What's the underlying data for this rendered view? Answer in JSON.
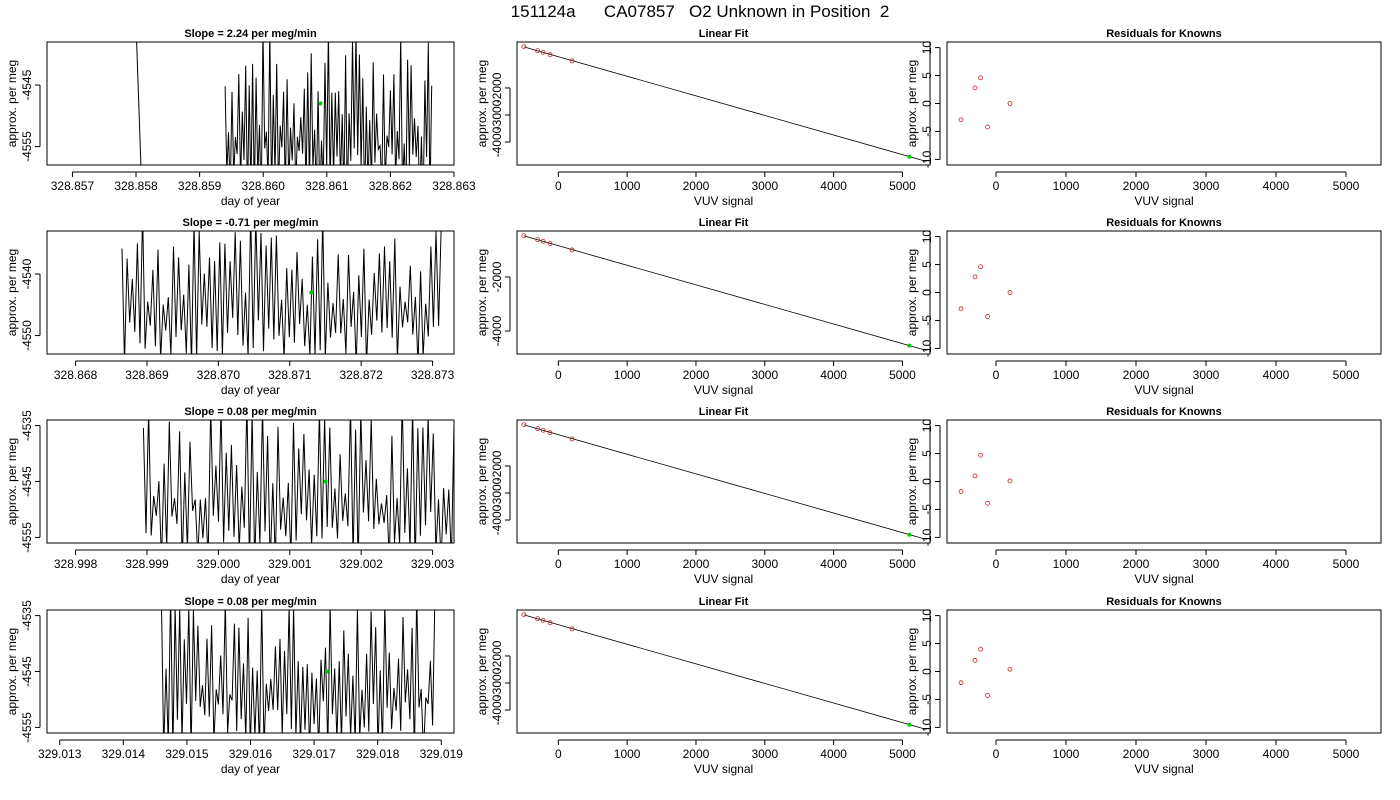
{
  "title": "151124a      CA07857   O2 Unknown in Position  2",
  "colors": {
    "trace": "#000000",
    "unknown_point": "#00cc00",
    "known_point": "#cc2222"
  },
  "chart_data": [
    {
      "type": "line",
      "title": "Slope =  2.24  per meg/min",
      "xlabel": "day of year",
      "ylabel": "approx. per meg",
      "xlim": [
        328.8566,
        328.863
      ],
      "ylim": [
        -4558,
        -4538
      ],
      "xticks": [
        "328.857",
        "328.858",
        "328.859",
        "328.860",
        "328.861",
        "328.862",
        "328.863"
      ],
      "xtick_values": [
        328.857,
        328.858,
        328.859,
        328.86,
        328.861,
        328.862,
        328.863
      ],
      "yticks": [
        "-4545",
        "-4555"
      ],
      "ytick_values": [
        -4545,
        -4555
      ],
      "series": [
        {
          "trace": "raw",
          "segments": [
            {
              "x": [
                328.858,
                328.8581
              ],
              "y": [
                -4535,
                -4565
              ]
            },
            {
              "x_start": 328.8594,
              "x_end": 328.86265,
              "cycles": 60,
              "hi": [
                -4555,
                -4535
              ],
              "lo": [
                -4565,
                -4555
              ]
            }
          ]
        }
      ],
      "mean_point": {
        "x": 328.8609,
        "y": -4548
      }
    },
    {
      "type": "scatter",
      "title": "Linear Fit",
      "xlabel": "VUV signal",
      "ylabel": "approx. per meg",
      "xlim": [
        -600,
        5400
      ],
      "ylim": [
        -4850,
        -300
      ],
      "xticks": [
        "0",
        "1000",
        "2000",
        "3000",
        "4000",
        "5000"
      ],
      "xtick_values": [
        0,
        1000,
        2000,
        3000,
        4000,
        5000
      ],
      "yticks": [
        "-2000",
        "-3000",
        "-4000"
      ],
      "ytick_values": [
        -2000,
        -3000,
        -4000
      ],
      "fit_line": {
        "x": [
          -500,
          5350
        ],
        "y": [
          -480,
          -4720
        ]
      },
      "knowns": {
        "x": [
          -500,
          -300,
          -220,
          -120,
          200
        ],
        "y": [
          -475,
          -620,
          -680,
          -770,
          -1000
        ]
      },
      "unknown": {
        "x": 5100,
        "y": -4545
      }
    },
    {
      "type": "scatter",
      "title": "Residuals for Knowns",
      "xlabel": "VUV signal",
      "ylabel": "approx. per meg",
      "xlim": [
        -700,
        5500
      ],
      "ylim": [
        -11,
        11
      ],
      "xticks": [
        "0",
        "1000",
        "2000",
        "3000",
        "4000",
        "5000"
      ],
      "xtick_values": [
        0,
        1000,
        2000,
        3000,
        4000,
        5000
      ],
      "yticks": [
        "10",
        "5",
        "0",
        "-5",
        "-10"
      ],
      "ytick_values": [
        10,
        5,
        0,
        -5,
        -10
      ],
      "points": {
        "x": [
          -500,
          -300,
          -220,
          -120,
          200
        ],
        "y": [
          -2.9,
          2.8,
          4.6,
          -4.2,
          0.0
        ]
      }
    },
    {
      "type": "line",
      "title": "Slope =  -0.71  per meg/min",
      "xlabel": "day of year",
      "ylabel": "approx. per meg",
      "xlim": [
        328.8676,
        328.8733
      ],
      "ylim": [
        -4553,
        -4533
      ],
      "xticks": [
        "328.868",
        "328.869",
        "328.870",
        "328.871",
        "328.872",
        "328.873"
      ],
      "xtick_values": [
        328.868,
        328.869,
        328.87,
        328.871,
        328.872,
        328.873
      ],
      "yticks": [
        "-4540",
        "-4550"
      ],
      "ytick_values": [
        -4540,
        -4550
      ],
      "series": [
        {
          "trace": "raw",
          "segments": [
            {
              "x_start": 328.86865,
              "x_end": 328.87312,
              "cycles": 62,
              "hi": [
                -4545,
                -4530
              ],
              "lo": [
                -4555,
                -4547
              ]
            }
          ]
        }
      ],
      "mean_point": {
        "x": 328.8713,
        "y": -4543
      }
    },
    {
      "type": "scatter",
      "title": "Linear Fit",
      "xlabel": "VUV signal",
      "ylabel": "approx. per meg",
      "xlim": [
        -600,
        5400
      ],
      "ylim": [
        -4850,
        -300
      ],
      "xticks": [
        "0",
        "1000",
        "2000",
        "3000",
        "4000",
        "5000"
      ],
      "xtick_values": [
        0,
        1000,
        2000,
        3000,
        4000,
        5000
      ],
      "yticks": [
        "-2000",
        "-4000"
      ],
      "ytick_values": [
        -2000,
        -4000
      ],
      "fit_line": {
        "x": [
          -500,
          5350
        ],
        "y": [
          -480,
          -4720
        ]
      },
      "knowns": {
        "x": [
          -500,
          -300,
          -220,
          -120,
          200
        ],
        "y": [
          -475,
          -620,
          -680,
          -770,
          -1000
        ]
      },
      "unknown": {
        "x": 5100,
        "y": -4540
      }
    },
    {
      "type": "scatter",
      "title": "Residuals for Knowns",
      "xlabel": "VUV signal",
      "ylabel": "approx. per meg",
      "xlim": [
        -700,
        5500
      ],
      "ylim": [
        -11,
        11
      ],
      "xticks": [
        "0",
        "1000",
        "2000",
        "3000",
        "4000",
        "5000"
      ],
      "xtick_values": [
        0,
        1000,
        2000,
        3000,
        4000,
        5000
      ],
      "yticks": [
        "10",
        "5",
        "0",
        "-5",
        "-10"
      ],
      "ytick_values": [
        10,
        5,
        0,
        -5,
        -10
      ],
      "points": {
        "x": [
          -500,
          -300,
          -220,
          -120,
          200
        ],
        "y": [
          -2.9,
          2.8,
          4.6,
          -4.3,
          0.0
        ]
      }
    },
    {
      "type": "line",
      "title": "Slope =  0.08  per meg/min",
      "xlabel": "day of year",
      "ylabel": "approx. per meg",
      "xlim": [
        328.9976,
        329.0033
      ],
      "ylim": [
        -4556,
        -4534
      ],
      "xticks": [
        "328.998",
        "328.999",
        "329.000",
        "329.001",
        "329.002",
        "329.003"
      ],
      "xtick_values": [
        328.998,
        328.999,
        329.0,
        329.001,
        329.002,
        329.003
      ],
      "yticks": [
        "-4535",
        "-4545",
        "-4555"
      ],
      "ytick_values": [
        -4535,
        -4545,
        -4555
      ],
      "series": [
        {
          "trace": "raw",
          "segments": [
            {
              "x_start": 328.99895,
              "x_end": 329.0033,
              "cycles": 60,
              "hi": [
                -4550,
                -4530
              ],
              "lo": [
                -4560,
                -4550
              ]
            }
          ]
        }
      ],
      "mean_point": {
        "x": 329.0015,
        "y": -4545
      }
    },
    {
      "type": "scatter",
      "title": "Linear Fit",
      "xlabel": "VUV signal",
      "ylabel": "approx. per meg",
      "xlim": [
        -600,
        5400
      ],
      "ylim": [
        -4850,
        -300
      ],
      "xticks": [
        "0",
        "1000",
        "2000",
        "3000",
        "4000",
        "5000"
      ],
      "xtick_values": [
        0,
        1000,
        2000,
        3000,
        4000,
        5000
      ],
      "yticks": [
        "-2000",
        "-3000",
        "-4000"
      ],
      "ytick_values": [
        -2000,
        -3000,
        -4000
      ],
      "fit_line": {
        "x": [
          -500,
          5350
        ],
        "y": [
          -480,
          -4720
        ]
      },
      "knowns": {
        "x": [
          -500,
          -300,
          -220,
          -120,
          200
        ],
        "y": [
          -475,
          -620,
          -680,
          -770,
          -1000
        ]
      },
      "unknown": {
        "x": 5100,
        "y": -4545
      }
    },
    {
      "type": "scatter",
      "title": "Residuals for Knowns",
      "xlabel": "VUV signal",
      "ylabel": "approx. per meg",
      "xlim": [
        -700,
        5500
      ],
      "ylim": [
        -11,
        11
      ],
      "xticks": [
        "0",
        "1000",
        "2000",
        "3000",
        "4000",
        "5000"
      ],
      "xtick_values": [
        0,
        1000,
        2000,
        3000,
        4000,
        5000
      ],
      "yticks": [
        "10",
        "5",
        "0",
        "-5",
        "-10"
      ],
      "ytick_values": [
        10,
        5,
        0,
        -5,
        -10
      ],
      "points": {
        "x": [
          -500,
          -300,
          -220,
          -120,
          200
        ],
        "y": [
          -1.8,
          1.0,
          4.7,
          -3.9,
          0.1
        ]
      }
    },
    {
      "type": "line",
      "title": "Slope =  0.08  per meg/min",
      "xlabel": "day of year",
      "ylabel": "approx. per meg",
      "xlim": [
        329.0128,
        329.0192
      ],
      "ylim": [
        -4556,
        -4534
      ],
      "xticks": [
        "329.013",
        "329.014",
        "329.015",
        "329.016",
        "329.017",
        "329.018",
        "329.019"
      ],
      "xtick_values": [
        329.013,
        329.014,
        329.015,
        329.016,
        329.017,
        329.018,
        329.019
      ],
      "yticks": [
        "-4535",
        "-4545",
        "-4555"
      ],
      "ytick_values": [
        -4535,
        -4545,
        -4555
      ],
      "series": [
        {
          "trace": "raw",
          "segments": [
            {
              "x_start": 329.0146,
              "x_end": 329.0189,
              "cycles": 60,
              "hi": [
                -4550,
                -4530
              ],
              "lo": [
                -4560,
                -4550
              ]
            }
          ]
        }
      ],
      "mean_point": {
        "x": 329.0172,
        "y": -4545
      }
    },
    {
      "type": "scatter",
      "title": "Linear Fit",
      "xlabel": "VUV signal",
      "ylabel": "approx. per meg",
      "xlim": [
        -600,
        5400
      ],
      "ylim": [
        -4850,
        -300
      ],
      "xticks": [
        "0",
        "1000",
        "2000",
        "3000",
        "4000",
        "5000"
      ],
      "xtick_values": [
        0,
        1000,
        2000,
        3000,
        4000,
        5000
      ],
      "yticks": [
        "-2000",
        "-3000",
        "-4000"
      ],
      "ytick_values": [
        -2000,
        -3000,
        -4000
      ],
      "fit_line": {
        "x": [
          -500,
          5350
        ],
        "y": [
          -480,
          -4720
        ]
      },
      "knowns": {
        "x": [
          -500,
          -300,
          -220,
          -120,
          200
        ],
        "y": [
          -475,
          -620,
          -680,
          -770,
          -1000
        ]
      },
      "unknown": {
        "x": 5100,
        "y": -4545
      }
    },
    {
      "type": "scatter",
      "title": "Residuals for Knowns",
      "xlabel": "VUV signal",
      "ylabel": "approx. per meg",
      "xlim": [
        -700,
        5500
      ],
      "ylim": [
        -11,
        11
      ],
      "xticks": [
        "0",
        "1000",
        "2000",
        "3000",
        "4000",
        "5000"
      ],
      "xtick_values": [
        0,
        1000,
        2000,
        3000,
        4000,
        5000
      ],
      "yticks": [
        "10",
        "5",
        "0",
        "-5",
        "-10"
      ],
      "ytick_values": [
        10,
        5,
        0,
        -5,
        -10
      ],
      "points": {
        "x": [
          -500,
          -300,
          -220,
          -120,
          200
        ],
        "y": [
          -2.0,
          2.0,
          4.0,
          -4.3,
          0.4
        ]
      }
    }
  ]
}
